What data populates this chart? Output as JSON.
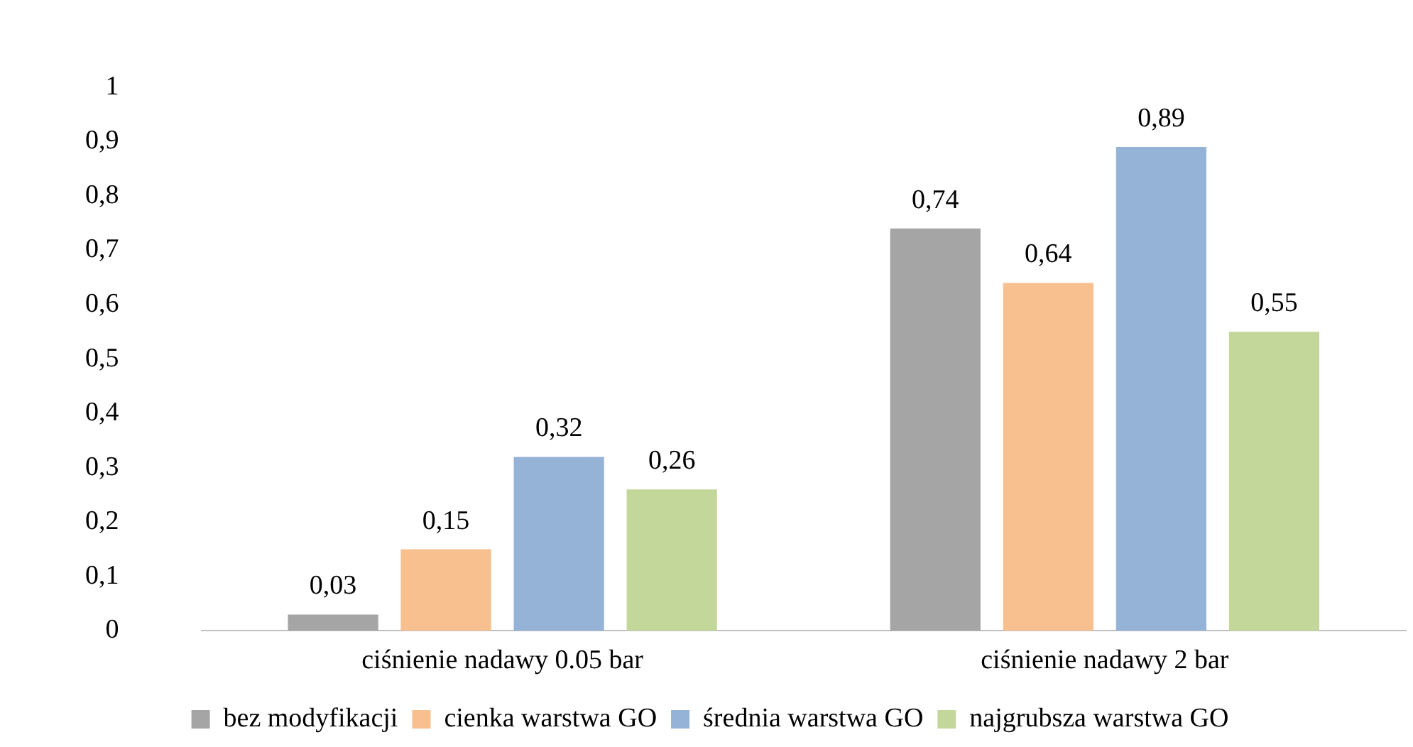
{
  "chart_data": {
    "type": "bar",
    "categories": [
      "ciśnienie nadawy 0.05 bar",
      "ciśnienie nadawy 2 bar"
    ],
    "series": [
      {
        "name": "bez modyfikacji",
        "color": "#a5a5a5",
        "values": [
          0.03,
          0.74
        ],
        "value_labels": [
          "0,03",
          "0,74"
        ]
      },
      {
        "name": "cienka warstwa GO",
        "color": "#f8bf8f",
        "values": [
          0.15,
          0.64
        ],
        "value_labels": [
          "0,15",
          "0,64"
        ]
      },
      {
        "name": "średnia warstwa GO",
        "color": "#95b3d7",
        "values": [
          0.32,
          0.89
        ],
        "value_labels": [
          "0,32",
          "0,89"
        ]
      },
      {
        "name": "najgrubsza warstwa GO",
        "color": "#c4d79b",
        "values": [
          0.26,
          0.55
        ],
        "value_labels": [
          "0,26",
          "0,55"
        ]
      }
    ],
    "ylim": [
      0,
      1
    ],
    "yticks": [
      0,
      {
        "value": 0.1,
        "label": "0,1"
      },
      {
        "value": 0.2,
        "label": "0,2"
      },
      {
        "value": 0.3,
        "label": "0,3"
      },
      {
        "value": 0.4,
        "label": "0,4"
      },
      {
        "value": 0.5,
        "label": "0,5"
      },
      {
        "value": 0.6,
        "label": "0,6"
      },
      {
        "value": 0.7,
        "label": "0,7"
      },
      {
        "value": 0.8,
        "label": "0,8"
      },
      {
        "value": 0.9,
        "label": "0,9"
      },
      1
    ],
    "grid": false,
    "legend": "bottom"
  }
}
